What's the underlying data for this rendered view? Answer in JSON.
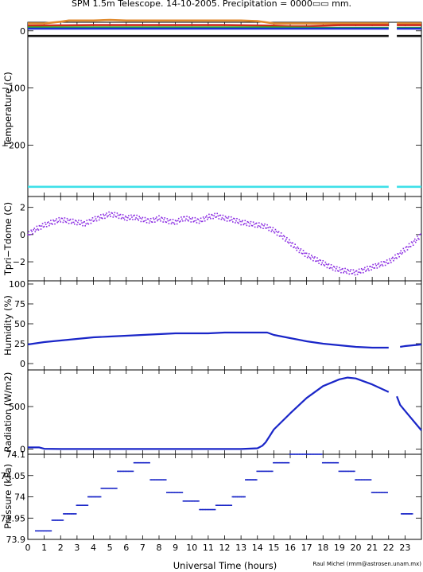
{
  "header": {
    "title": "SPM 1.5m Telescope. 14-10-2005. Precipitation = 0000▭▭ mm."
  },
  "footer": {
    "xlabel": "Universal Time (hours)",
    "credit": "Raul Michel (rmm@astrosen.unam.mx)"
  },
  "chart_data": [
    {
      "type": "line",
      "ylabel": "Temperature (C)",
      "xlim": [
        0,
        24
      ],
      "ylim": [
        -290,
        15
      ],
      "yticks": [
        0,
        -100,
        -200
      ],
      "ytick_labels": [
        "0",
        "−100",
        "−200"
      ],
      "series": [
        {
          "color": "#e08a2e",
          "x": [
            0,
            1,
            2,
            2.5,
            3,
            4,
            5,
            6,
            7,
            8,
            9,
            10,
            11,
            12,
            13,
            14,
            14.5,
            15,
            16,
            17,
            18,
            19,
            20,
            21,
            22
          ],
          "y": [
            13,
            13,
            16,
            18,
            18,
            18,
            19,
            18,
            18,
            18,
            18,
            18,
            18,
            18,
            18,
            17,
            15,
            13,
            13,
            13,
            13,
            13,
            13,
            13,
            13
          ]
        },
        {
          "color": "#e08a2e",
          "x": [
            22.5,
            23,
            24
          ],
          "y": [
            13,
            13,
            13
          ]
        },
        {
          "color": "#cc2a1e",
          "x": [
            0,
            4,
            8,
            12,
            15,
            16,
            17,
            18,
            19,
            20,
            21,
            22
          ],
          "y": [
            9,
            10,
            10,
            10,
            9,
            8,
            8,
            9,
            10,
            10,
            10,
            10
          ]
        },
        {
          "color": "#cc2a1e",
          "x": [
            22.5,
            24
          ],
          "y": [
            10,
            10
          ]
        },
        {
          "color": "#22c422",
          "x": [
            0,
            4,
            8,
            12,
            15,
            18,
            20,
            22
          ],
          "y": [
            6,
            6,
            6,
            6,
            6,
            5,
            5,
            5
          ]
        },
        {
          "color": "#22c422",
          "x": [
            22.5,
            24
          ],
          "y": [
            5,
            5
          ]
        },
        {
          "color": "#1d2fd0",
          "x": [
            0,
            4,
            8,
            12,
            15,
            18,
            20,
            22
          ],
          "y": [
            4,
            4,
            4,
            4,
            4,
            4,
            4,
            4
          ]
        },
        {
          "color": "#1d2fd0",
          "x": [
            22.5,
            24
          ],
          "y": [
            4,
            4
          ]
        },
        {
          "color": "#111111",
          "x": [
            0,
            22
          ],
          "y": [
            -9,
            -9
          ]
        },
        {
          "color": "#111111",
          "x": [
            22.5,
            24
          ],
          "y": [
            -9,
            -9
          ]
        },
        {
          "color": "#3ee0e8",
          "x": [
            0,
            22
          ],
          "y": [
            -273,
            -273
          ]
        },
        {
          "color": "#3ee0e8",
          "x": [
            22.5,
            24
          ],
          "y": [
            -273,
            -273
          ]
        }
      ]
    },
    {
      "type": "scatter",
      "ylabel": "Tpri−Tdome (C)",
      "xlim": [
        0,
        24
      ],
      "ylim": [
        -3.4,
        2.8
      ],
      "yticks": [
        2,
        0,
        -2
      ],
      "ytick_labels": [
        "2",
        "0",
        "−2"
      ],
      "series": [
        {
          "color": "#8a2be2",
          "x": [
            0,
            0.5,
            1,
            1.5,
            2,
            2.5,
            3,
            3.5,
            4,
            4.5,
            5,
            5.5,
            6,
            6.5,
            7,
            7.5,
            8,
            8.5,
            9,
            9.5,
            10,
            10.5,
            11,
            11.5,
            12,
            12.5,
            13,
            13.5,
            14,
            14.5,
            15,
            15.5,
            16,
            16.5,
            17,
            17.5,
            18,
            18.5,
            19,
            19.5,
            20,
            20.5,
            21,
            21.5,
            22,
            22.5,
            23,
            23.5,
            24
          ],
          "y": [
            0,
            0.4,
            0.7,
            0.9,
            1.1,
            1.0,
            0.9,
            0.8,
            1.1,
            1.3,
            1.5,
            1.4,
            1.2,
            1.3,
            1.1,
            1.0,
            1.2,
            1.0,
            0.9,
            1.2,
            1.1,
            1.0,
            1.3,
            1.4,
            1.2,
            1.1,
            0.9,
            0.8,
            0.7,
            0.6,
            0.3,
            -0.1,
            -0.6,
            -1.1,
            -1.5,
            -1.8,
            -2.1,
            -2.4,
            -2.6,
            -2.7,
            -2.8,
            -2.6,
            -2.4,
            -2.2,
            -2.0,
            -1.6,
            -1.1,
            -0.6,
            0.0
          ]
        }
      ]
    },
    {
      "type": "line",
      "ylabel": "Humidity (%)",
      "xlim": [
        0,
        24
      ],
      "ylim": [
        -8,
        104
      ],
      "yticks": [
        0,
        25,
        50,
        75,
        100
      ],
      "ytick_labels": [
        "0",
        "25",
        "50",
        "75",
        "100"
      ],
      "series": [
        {
          "color": "#1a26c8",
          "x": [
            0,
            1,
            2,
            3,
            4,
            5,
            6,
            7,
            8,
            9,
            10,
            11,
            12,
            13,
            14,
            14.6,
            15,
            16,
            17,
            18,
            19,
            20,
            21,
            22
          ],
          "y": [
            24,
            27,
            29,
            31,
            33,
            34,
            35,
            36,
            37,
            38,
            38,
            38,
            39,
            39,
            39,
            39,
            36,
            32,
            28,
            25,
            23,
            21,
            20,
            20
          ]
        },
        {
          "color": "#1a26c8",
          "x": [
            22.7,
            23,
            24
          ],
          "y": [
            21,
            22,
            24
          ]
        }
      ]
    },
    {
      "type": "line",
      "ylabel": "Radiation (W/m2)",
      "xlim": [
        0,
        24
      ],
      "ylim": [
        -60,
        930
      ],
      "yticks": [
        0,
        500
      ],
      "ytick_labels": [
        "0",
        "500"
      ],
      "series": [
        {
          "color": "#1a26c8",
          "x": [
            0,
            0.7,
            1,
            2,
            4,
            6,
            8,
            10,
            12,
            13,
            14,
            14.3,
            14.5,
            14.7,
            15,
            16,
            17,
            18,
            19,
            19.5,
            20,
            21,
            22
          ],
          "y": [
            20,
            20,
            4,
            2,
            2,
            2,
            2,
            2,
            2,
            2,
            10,
            40,
            80,
            140,
            230,
            420,
            600,
            740,
            820,
            840,
            830,
            760,
            670
          ]
        },
        {
          "color": "#1a26c8",
          "x": [
            22.5,
            22.7,
            23,
            24
          ],
          "y": [
            620,
            520,
            450,
            220
          ]
        }
      ]
    },
    {
      "type": "scatter",
      "ylabel": "Pressure (kPa)",
      "xlim": [
        0,
        24
      ],
      "ylim": [
        73.9,
        74.1
      ],
      "yticks": [
        73.9,
        73.95,
        74.0,
        74.05,
        74.1
      ],
      "ytick_labels": [
        "73.9",
        "73.95",
        "74",
        "74.05",
        "74.1"
      ],
      "series": [
        {
          "color": "#1a26c8",
          "x": [
            0.5,
            1.5,
            2.2,
            3,
            3.7,
            4.5,
            5.5,
            6.5,
            7.5,
            8.5,
            9.5,
            10.5,
            11.5,
            12.5,
            13.3,
            14,
            15,
            16,
            17,
            18,
            19,
            20,
            21,
            22
          ],
          "y": [
            73.92,
            73.945,
            73.96,
            73.98,
            74.0,
            74.02,
            74.06,
            74.08,
            74.04,
            74.01,
            73.99,
            73.97,
            73.98,
            74.0,
            74.04,
            74.06,
            74.08,
            74.1,
            74.1,
            74.08,
            74.06,
            74.04,
            74.01,
            73.97
          ]
        },
        {
          "color": "#1a26c8",
          "x": [
            22.8,
            23.5
          ],
          "y": [
            73.96,
            73.94
          ]
        }
      ]
    }
  ],
  "xticks": [
    0,
    1,
    2,
    3,
    4,
    5,
    6,
    7,
    8,
    9,
    10,
    11,
    12,
    13,
    14,
    15,
    16,
    17,
    18,
    19,
    20,
    21,
    22,
    23
  ]
}
